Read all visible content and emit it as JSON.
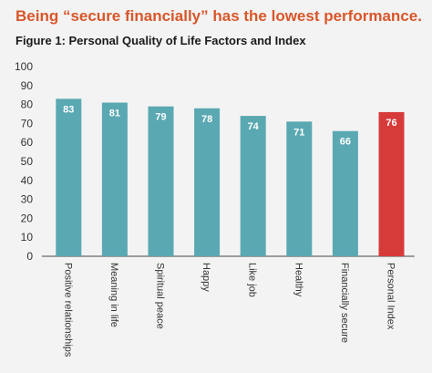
{
  "headline": "Being “secure financially” has the lowest performance.",
  "figure_title": "Figure 1: Personal Quality of Life Factors and Index",
  "colors": {
    "headline": "#d8572a",
    "bar_default": "#5aa8b2",
    "bar_highlight": "#d63b3a",
    "axis": "#444444"
  },
  "chart_data": {
    "type": "bar",
    "title": "Figure 1: Personal Quality of Life Factors and Index",
    "xlabel": "",
    "ylabel": "",
    "ylim": [
      0,
      100
    ],
    "yticks": [
      0,
      10,
      20,
      30,
      40,
      50,
      60,
      70,
      80,
      90,
      100
    ],
    "grid": false,
    "categories": [
      "Positive relationships",
      "Meaning in life",
      "Spiritual peace",
      "Happy",
      "Like job",
      "Healthy",
      "Financially secure",
      "Personal Index"
    ],
    "values": [
      83,
      81,
      79,
      78,
      74,
      71,
      66,
      76
    ],
    "highlight_index": 7
  }
}
